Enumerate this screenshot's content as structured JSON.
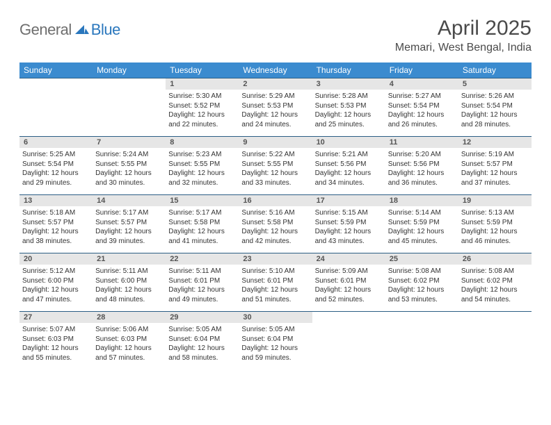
{
  "logo": {
    "general": "General",
    "blue": "Blue"
  },
  "title": "April 2025",
  "subtitle": "Memari, West Bengal, India",
  "colors": {
    "header_bg": "#3b8bcf",
    "header_text": "#ffffff",
    "cell_border": "#2b5d84",
    "daynum_bg": "#e6e6e6",
    "logo_gray": "#6e6e6e",
    "logo_blue": "#2a77bd"
  },
  "weekdays": [
    "Sunday",
    "Monday",
    "Tuesday",
    "Wednesday",
    "Thursday",
    "Friday",
    "Saturday"
  ],
  "weeks": [
    [
      null,
      null,
      {
        "n": "1",
        "sr": "Sunrise: 5:30 AM",
        "ss": "Sunset: 5:52 PM",
        "d1": "Daylight: 12 hours",
        "d2": "and 22 minutes."
      },
      {
        "n": "2",
        "sr": "Sunrise: 5:29 AM",
        "ss": "Sunset: 5:53 PM",
        "d1": "Daylight: 12 hours",
        "d2": "and 24 minutes."
      },
      {
        "n": "3",
        "sr": "Sunrise: 5:28 AM",
        "ss": "Sunset: 5:53 PM",
        "d1": "Daylight: 12 hours",
        "d2": "and 25 minutes."
      },
      {
        "n": "4",
        "sr": "Sunrise: 5:27 AM",
        "ss": "Sunset: 5:54 PM",
        "d1": "Daylight: 12 hours",
        "d2": "and 26 minutes."
      },
      {
        "n": "5",
        "sr": "Sunrise: 5:26 AM",
        "ss": "Sunset: 5:54 PM",
        "d1": "Daylight: 12 hours",
        "d2": "and 28 minutes."
      }
    ],
    [
      {
        "n": "6",
        "sr": "Sunrise: 5:25 AM",
        "ss": "Sunset: 5:54 PM",
        "d1": "Daylight: 12 hours",
        "d2": "and 29 minutes."
      },
      {
        "n": "7",
        "sr": "Sunrise: 5:24 AM",
        "ss": "Sunset: 5:55 PM",
        "d1": "Daylight: 12 hours",
        "d2": "and 30 minutes."
      },
      {
        "n": "8",
        "sr": "Sunrise: 5:23 AM",
        "ss": "Sunset: 5:55 PM",
        "d1": "Daylight: 12 hours",
        "d2": "and 32 minutes."
      },
      {
        "n": "9",
        "sr": "Sunrise: 5:22 AM",
        "ss": "Sunset: 5:55 PM",
        "d1": "Daylight: 12 hours",
        "d2": "and 33 minutes."
      },
      {
        "n": "10",
        "sr": "Sunrise: 5:21 AM",
        "ss": "Sunset: 5:56 PM",
        "d1": "Daylight: 12 hours",
        "d2": "and 34 minutes."
      },
      {
        "n": "11",
        "sr": "Sunrise: 5:20 AM",
        "ss": "Sunset: 5:56 PM",
        "d1": "Daylight: 12 hours",
        "d2": "and 36 minutes."
      },
      {
        "n": "12",
        "sr": "Sunrise: 5:19 AM",
        "ss": "Sunset: 5:57 PM",
        "d1": "Daylight: 12 hours",
        "d2": "and 37 minutes."
      }
    ],
    [
      {
        "n": "13",
        "sr": "Sunrise: 5:18 AM",
        "ss": "Sunset: 5:57 PM",
        "d1": "Daylight: 12 hours",
        "d2": "and 38 minutes."
      },
      {
        "n": "14",
        "sr": "Sunrise: 5:17 AM",
        "ss": "Sunset: 5:57 PM",
        "d1": "Daylight: 12 hours",
        "d2": "and 39 minutes."
      },
      {
        "n": "15",
        "sr": "Sunrise: 5:17 AM",
        "ss": "Sunset: 5:58 PM",
        "d1": "Daylight: 12 hours",
        "d2": "and 41 minutes."
      },
      {
        "n": "16",
        "sr": "Sunrise: 5:16 AM",
        "ss": "Sunset: 5:58 PM",
        "d1": "Daylight: 12 hours",
        "d2": "and 42 minutes."
      },
      {
        "n": "17",
        "sr": "Sunrise: 5:15 AM",
        "ss": "Sunset: 5:59 PM",
        "d1": "Daylight: 12 hours",
        "d2": "and 43 minutes."
      },
      {
        "n": "18",
        "sr": "Sunrise: 5:14 AM",
        "ss": "Sunset: 5:59 PM",
        "d1": "Daylight: 12 hours",
        "d2": "and 45 minutes."
      },
      {
        "n": "19",
        "sr": "Sunrise: 5:13 AM",
        "ss": "Sunset: 5:59 PM",
        "d1": "Daylight: 12 hours",
        "d2": "and 46 minutes."
      }
    ],
    [
      {
        "n": "20",
        "sr": "Sunrise: 5:12 AM",
        "ss": "Sunset: 6:00 PM",
        "d1": "Daylight: 12 hours",
        "d2": "and 47 minutes."
      },
      {
        "n": "21",
        "sr": "Sunrise: 5:11 AM",
        "ss": "Sunset: 6:00 PM",
        "d1": "Daylight: 12 hours",
        "d2": "and 48 minutes."
      },
      {
        "n": "22",
        "sr": "Sunrise: 5:11 AM",
        "ss": "Sunset: 6:01 PM",
        "d1": "Daylight: 12 hours",
        "d2": "and 49 minutes."
      },
      {
        "n": "23",
        "sr": "Sunrise: 5:10 AM",
        "ss": "Sunset: 6:01 PM",
        "d1": "Daylight: 12 hours",
        "d2": "and 51 minutes."
      },
      {
        "n": "24",
        "sr": "Sunrise: 5:09 AM",
        "ss": "Sunset: 6:01 PM",
        "d1": "Daylight: 12 hours",
        "d2": "and 52 minutes."
      },
      {
        "n": "25",
        "sr": "Sunrise: 5:08 AM",
        "ss": "Sunset: 6:02 PM",
        "d1": "Daylight: 12 hours",
        "d2": "and 53 minutes."
      },
      {
        "n": "26",
        "sr": "Sunrise: 5:08 AM",
        "ss": "Sunset: 6:02 PM",
        "d1": "Daylight: 12 hours",
        "d2": "and 54 minutes."
      }
    ],
    [
      {
        "n": "27",
        "sr": "Sunrise: 5:07 AM",
        "ss": "Sunset: 6:03 PM",
        "d1": "Daylight: 12 hours",
        "d2": "and 55 minutes."
      },
      {
        "n": "28",
        "sr": "Sunrise: 5:06 AM",
        "ss": "Sunset: 6:03 PM",
        "d1": "Daylight: 12 hours",
        "d2": "and 57 minutes."
      },
      {
        "n": "29",
        "sr": "Sunrise: 5:05 AM",
        "ss": "Sunset: 6:04 PM",
        "d1": "Daylight: 12 hours",
        "d2": "and 58 minutes."
      },
      {
        "n": "30",
        "sr": "Sunrise: 5:05 AM",
        "ss": "Sunset: 6:04 PM",
        "d1": "Daylight: 12 hours",
        "d2": "and 59 minutes."
      },
      null,
      null,
      null
    ]
  ]
}
